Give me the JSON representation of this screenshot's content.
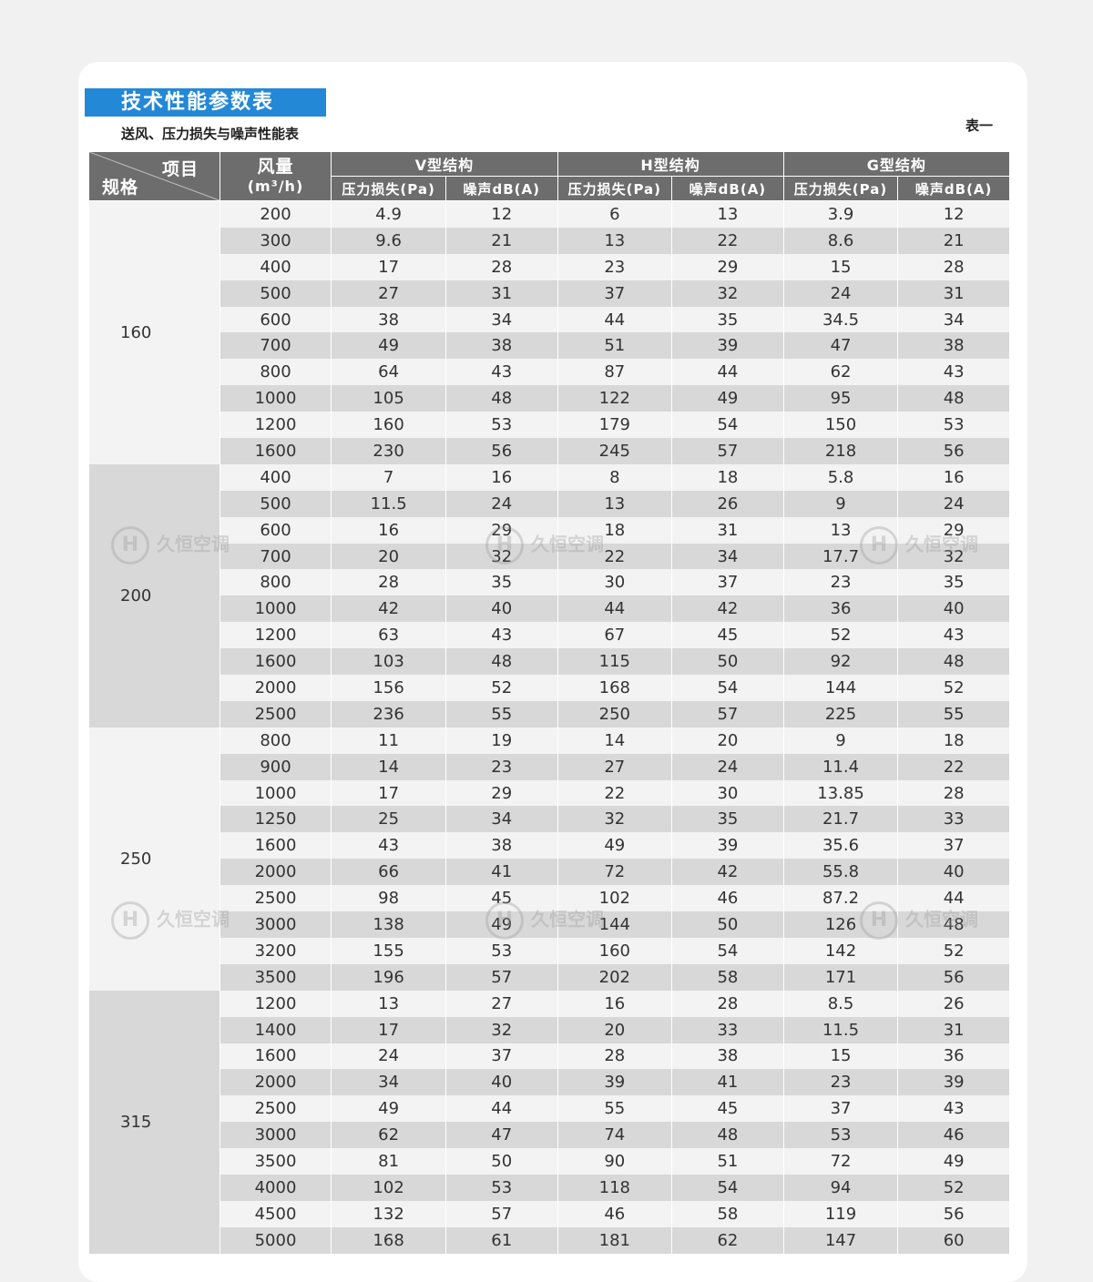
{
  "header": {
    "title": "技术性能参数表",
    "subtitle": "送风、压力损失与噪声性能表",
    "table_no": "表一"
  },
  "table": {
    "corner_top": "项目",
    "corner_bottom": "规格",
    "flow_label": "风量",
    "flow_unit": "(m³/h)",
    "groups": [
      "V型结构",
      "H型结构",
      "G型结构"
    ],
    "sub_pressure": "压力损失(Pa)",
    "sub_noise": "噪声dB(A)",
    "sections": [
      {
        "spec": "160",
        "rows": [
          [
            "200",
            "4.9",
            "12",
            "6",
            "13",
            "3.9",
            "12"
          ],
          [
            "300",
            "9.6",
            "21",
            "13",
            "22",
            "8.6",
            "21"
          ],
          [
            "400",
            "17",
            "28",
            "23",
            "29",
            "15",
            "28"
          ],
          [
            "500",
            "27",
            "31",
            "37",
            "32",
            "24",
            "31"
          ],
          [
            "600",
            "38",
            "34",
            "44",
            "35",
            "34.5",
            "34"
          ],
          [
            "700",
            "49",
            "38",
            "51",
            "39",
            "47",
            "38"
          ],
          [
            "800",
            "64",
            "43",
            "87",
            "44",
            "62",
            "43"
          ],
          [
            "1000",
            "105",
            "48",
            "122",
            "49",
            "95",
            "48"
          ],
          [
            "1200",
            "160",
            "53",
            "179",
            "54",
            "150",
            "53"
          ],
          [
            "1600",
            "230",
            "56",
            "245",
            "57",
            "218",
            "56"
          ]
        ]
      },
      {
        "spec": "200",
        "rows": [
          [
            "400",
            "7",
            "16",
            "8",
            "18",
            "5.8",
            "16"
          ],
          [
            "500",
            "11.5",
            "24",
            "13",
            "26",
            "9",
            "24"
          ],
          [
            "600",
            "16",
            "29",
            "18",
            "31",
            "13",
            "29"
          ],
          [
            "700",
            "20",
            "32",
            "22",
            "34",
            "17.7",
            "32"
          ],
          [
            "800",
            "28",
            "35",
            "30",
            "37",
            "23",
            "35"
          ],
          [
            "1000",
            "42",
            "40",
            "44",
            "42",
            "36",
            "40"
          ],
          [
            "1200",
            "63",
            "43",
            "67",
            "45",
            "52",
            "43"
          ],
          [
            "1600",
            "103",
            "48",
            "115",
            "50",
            "92",
            "48"
          ],
          [
            "2000",
            "156",
            "52",
            "168",
            "54",
            "144",
            "52"
          ],
          [
            "2500",
            "236",
            "55",
            "250",
            "57",
            "225",
            "55"
          ]
        ]
      },
      {
        "spec": "250",
        "rows": [
          [
            "800",
            "11",
            "19",
            "14",
            "20",
            "9",
            "18"
          ],
          [
            "900",
            "14",
            "23",
            "27",
            "24",
            "11.4",
            "22"
          ],
          [
            "1000",
            "17",
            "29",
            "22",
            "30",
            "13.85",
            "28"
          ],
          [
            "1250",
            "25",
            "34",
            "32",
            "35",
            "21.7",
            "33"
          ],
          [
            "1600",
            "43",
            "38",
            "49",
            "39",
            "35.6",
            "37"
          ],
          [
            "2000",
            "66",
            "41",
            "72",
            "42",
            "55.8",
            "40"
          ],
          [
            "2500",
            "98",
            "45",
            "102",
            "46",
            "87.2",
            "44"
          ],
          [
            "3000",
            "138",
            "49",
            "144",
            "50",
            "126",
            "48"
          ],
          [
            "3200",
            "155",
            "53",
            "160",
            "54",
            "142",
            "52"
          ],
          [
            "3500",
            "196",
            "57",
            "202",
            "58",
            "171",
            "56"
          ]
        ]
      },
      {
        "spec": "315",
        "rows": [
          [
            "1200",
            "13",
            "27",
            "16",
            "28",
            "8.5",
            "26"
          ],
          [
            "1400",
            "17",
            "32",
            "20",
            "33",
            "11.5",
            "31"
          ],
          [
            "1600",
            "24",
            "37",
            "28",
            "38",
            "15",
            "36"
          ],
          [
            "2000",
            "34",
            "40",
            "39",
            "41",
            "23",
            "39"
          ],
          [
            "2500",
            "49",
            "44",
            "55",
            "45",
            "37",
            "43"
          ],
          [
            "3000",
            "62",
            "47",
            "74",
            "48",
            "53",
            "46"
          ],
          [
            "3500",
            "81",
            "50",
            "90",
            "51",
            "72",
            "49"
          ],
          [
            "4000",
            "102",
            "53",
            "118",
            "54",
            "94",
            "52"
          ],
          [
            "4500",
            "132",
            "57",
            "46",
            "58",
            "119",
            "56"
          ],
          [
            "5000",
            "168",
            "61",
            "181",
            "62",
            "147",
            "60"
          ]
        ]
      }
    ]
  },
  "watermark": {
    "logo_glyph": "H",
    "brand": "久恒空调"
  }
}
